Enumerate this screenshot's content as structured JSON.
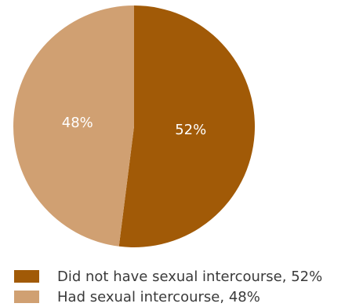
{
  "chart_data": {
    "type": "pie",
    "slices": [
      {
        "label": "Did not have sexual intercourse",
        "value": 52,
        "color": "#a15a07",
        "data_label": "52%",
        "legend_label": "Did not have sexual intercourse, 52%"
      },
      {
        "label": "Had sexual intercourse",
        "value": 48,
        "color": "#d0a072",
        "data_label": "48%",
        "legend_label": "Had sexual intercourse, 48%"
      }
    ],
    "start_angle": "top (12 o'clock)",
    "direction": "clockwise",
    "legend_position": "bottom-left"
  }
}
